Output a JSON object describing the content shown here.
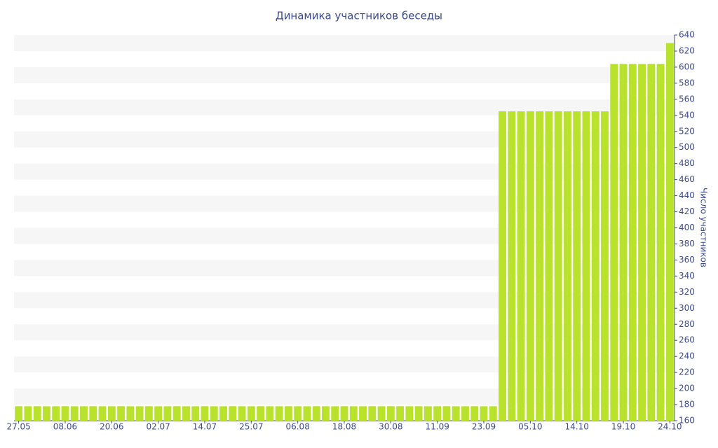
{
  "chart_data": {
    "type": "bar",
    "title": "Динамика участников беседы",
    "y_axis_label": "Число участников",
    "categories": [
      "27.05",
      null,
      null,
      null,
      null,
      "08.06",
      null,
      null,
      null,
      null,
      "20.06",
      null,
      null,
      null,
      null,
      "02.07",
      null,
      null,
      null,
      null,
      "14.07",
      null,
      null,
      null,
      null,
      "25.07",
      null,
      null,
      null,
      null,
      "06.08",
      null,
      null,
      null,
      null,
      "18.08",
      null,
      null,
      null,
      null,
      "30.08",
      null,
      null,
      null,
      null,
      "11.09",
      null,
      null,
      null,
      null,
      "23.09",
      null,
      null,
      null,
      null,
      "05.10",
      null,
      null,
      null,
      null,
      "14.10",
      null,
      null,
      null,
      null,
      "19.10",
      null,
      null,
      null,
      null,
      "24.10"
    ],
    "values": [
      178,
      178,
      178,
      178,
      178,
      178,
      178,
      178,
      178,
      178,
      178,
      178,
      178,
      178,
      178,
      178,
      178,
      178,
      178,
      178,
      178,
      178,
      178,
      178,
      178,
      178,
      178,
      178,
      178,
      178,
      178,
      178,
      178,
      178,
      178,
      178,
      178,
      178,
      178,
      178,
      178,
      178,
      178,
      178,
      178,
      178,
      178,
      178,
      178,
      178,
      178,
      178,
      545,
      545,
      545,
      545,
      545,
      545,
      545,
      545,
      545,
      545,
      545,
      545,
      604,
      604,
      604,
      604,
      604,
      604,
      630
    ],
    "color": "#b8e22c",
    "ylim": [
      160,
      640
    ],
    "yticks": [
      160,
      180,
      200,
      220,
      240,
      260,
      280,
      300,
      320,
      340,
      360,
      380,
      400,
      420,
      440,
      460,
      480,
      500,
      520,
      540,
      560,
      580,
      600,
      620,
      640
    ],
    "grid": "bands",
    "y_axis_side": "right"
  }
}
